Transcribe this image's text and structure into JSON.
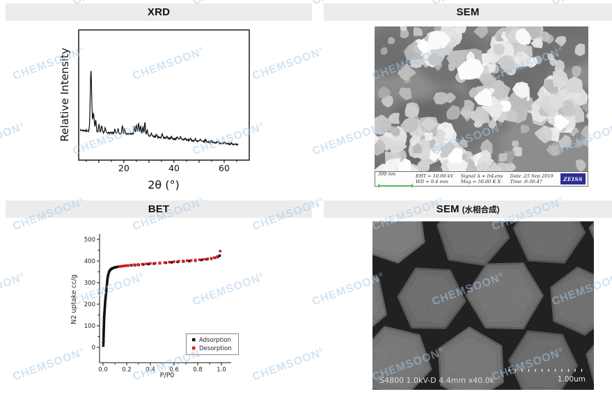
{
  "watermark": {
    "text": "CHEMSOON",
    "mark": "®",
    "color": "#a9c9e6",
    "opacity": 0.5
  },
  "panels": {
    "xrd": {
      "title": "XRD"
    },
    "sem1": {
      "title": "SEM",
      "footer": {
        "scale_label": "300 nm",
        "scale_color": "#3db53d",
        "columns": [
          {
            "line1": "EHT = 10.00 kV",
            "line2": "WD = 9.4 mm"
          },
          {
            "line1": "Signal A = InLens",
            "line2": "Mag = 50.00 K X"
          },
          {
            "line1": "Date :25 Sep 2019",
            "line2": "Time :9:36:47"
          }
        ],
        "logo": "ZEISS"
      }
    },
    "bet": {
      "title": "BET"
    },
    "sem2": {
      "title": "SEM",
      "subtitle": "(水相合成)",
      "overlay_left": "S4800 1.0kV-D 4.4mm x40.0k",
      "scale_label": "1.00um"
    }
  },
  "chart_data": [
    {
      "id": "xrd",
      "type": "line",
      "title": "XRD",
      "xlabel": "2θ (°)",
      "ylabel": "Relative Intensity",
      "xlim": [
        2,
        70
      ],
      "xticks": [
        20,
        40,
        60
      ],
      "grid": false,
      "line_color": "#111111",
      "peaks_2theta_relintensity": [
        [
          6.9,
          100
        ],
        [
          7.9,
          30
        ],
        [
          8.8,
          20
        ],
        [
          10.1,
          12
        ],
        [
          11.2,
          10
        ],
        [
          12.6,
          7
        ],
        [
          16.4,
          6
        ],
        [
          17.7,
          7
        ],
        [
          19.4,
          14
        ],
        [
          20.3,
          8
        ],
        [
          24.3,
          12
        ],
        [
          25.1,
          16
        ],
        [
          25.9,
          19
        ],
        [
          26.7,
          15
        ],
        [
          27.6,
          13
        ],
        [
          28.4,
          21
        ],
        [
          29.3,
          9
        ],
        [
          31.0,
          4
        ],
        [
          33.0,
          4
        ],
        [
          35.3,
          7
        ],
        [
          37.2,
          3
        ],
        [
          39.0,
          3
        ],
        [
          41.2,
          4
        ],
        [
          42.6,
          5
        ],
        [
          44.5,
          3
        ],
        [
          46.5,
          3
        ],
        [
          48.5,
          3
        ],
        [
          50.5,
          3
        ],
        [
          52.6,
          4
        ],
        [
          55.0,
          2
        ],
        [
          57.3,
          3
        ],
        [
          60.0,
          2
        ],
        [
          63.0,
          2
        ]
      ],
      "baseline_rel": {
        "start": 17,
        "end": 10
      }
    },
    {
      "id": "bet",
      "type": "scatter",
      "xlabel": "P/P0",
      "ylabel": "N2 uptake  cc/g",
      "xlim": [
        -0.03,
        1.07
      ],
      "ylim": [
        -70,
        530
      ],
      "xticks": [
        0.0,
        0.2,
        0.4,
        0.6,
        0.8,
        1.0
      ],
      "yticks": [
        0,
        100,
        200,
        300,
        400,
        500
      ],
      "grid": false,
      "legend_position": "lower right",
      "series": [
        {
          "name": "Adsorption",
          "color": "#111111",
          "marker": "square",
          "points": [
            [
              0.002,
              8
            ],
            [
              0.003,
              20
            ],
            [
              0.004,
              31
            ],
            [
              0.004,
              42
            ],
            [
              0.005,
              53
            ],
            [
              0.005,
              63
            ],
            [
              0.006,
              73
            ],
            [
              0.006,
              83
            ],
            [
              0.007,
              93
            ],
            [
              0.007,
              102
            ],
            [
              0.008,
              111
            ],
            [
              0.008,
              120
            ],
            [
              0.009,
              129
            ],
            [
              0.009,
              137
            ],
            [
              0.01,
              145
            ],
            [
              0.011,
              153
            ],
            [
              0.012,
              161
            ],
            [
              0.013,
              169
            ],
            [
              0.014,
              177
            ],
            [
              0.015,
              185
            ],
            [
              0.016,
              194
            ],
            [
              0.017,
              203
            ],
            [
              0.018,
              212
            ],
            [
              0.02,
              222
            ],
            [
              0.022,
              232
            ],
            [
              0.024,
              243
            ],
            [
              0.026,
              254
            ],
            [
              0.028,
              265
            ],
            [
              0.03,
              276
            ],
            [
              0.032,
              287
            ],
            [
              0.034,
              298
            ],
            [
              0.036,
              309
            ],
            [
              0.038,
              319
            ],
            [
              0.041,
              329
            ],
            [
              0.045,
              339
            ],
            [
              0.05,
              348
            ],
            [
              0.056,
              355
            ],
            [
              0.063,
              360
            ],
            [
              0.072,
              364
            ],
            [
              0.082,
              367
            ],
            [
              0.093,
              369
            ],
            [
              0.105,
              371
            ],
            [
              0.12,
              373
            ],
            [
              0.14,
              375
            ],
            [
              0.16,
              376
            ],
            [
              0.185,
              378
            ],
            [
              0.21,
              379
            ],
            [
              0.24,
              380
            ],
            [
              0.27,
              381
            ],
            [
              0.3,
              382
            ],
            [
              0.34,
              384
            ],
            [
              0.385,
              386
            ],
            [
              0.43,
              388
            ],
            [
              0.48,
              390
            ],
            [
              0.53,
              392
            ],
            [
              0.58,
              394
            ],
            [
              0.63,
              396
            ],
            [
              0.68,
              398
            ],
            [
              0.73,
              400
            ],
            [
              0.78,
              402
            ],
            [
              0.83,
              405
            ],
            [
              0.875,
              408
            ],
            [
              0.915,
              411
            ],
            [
              0.945,
              415
            ],
            [
              0.97,
              419
            ],
            [
              0.985,
              425
            ]
          ]
        },
        {
          "name": "Desorption",
          "color": "#e31b1b",
          "marker": "square",
          "points": [
            [
              0.99,
              446
            ],
            [
              0.965,
              421
            ],
            [
              0.94,
              416
            ],
            [
              0.915,
              413
            ],
            [
              0.885,
              410
            ],
            [
              0.85,
              408
            ],
            [
              0.815,
              406
            ],
            [
              0.78,
              405
            ],
            [
              0.745,
              403
            ],
            [
              0.71,
              402
            ],
            [
              0.675,
              400
            ],
            [
              0.64,
              399
            ],
            [
              0.6,
              397
            ],
            [
              0.56,
              395
            ],
            [
              0.52,
              393
            ],
            [
              0.48,
              392
            ],
            [
              0.44,
              390
            ],
            [
              0.4,
              389
            ],
            [
              0.365,
              387
            ],
            [
              0.33,
              386
            ],
            [
              0.295,
              384
            ],
            [
              0.265,
              383
            ],
            [
              0.235,
              381
            ],
            [
              0.205,
              379
            ],
            [
              0.18,
              378
            ],
            [
              0.155,
              376
            ],
            [
              0.14,
              374
            ]
          ]
        }
      ]
    }
  ]
}
